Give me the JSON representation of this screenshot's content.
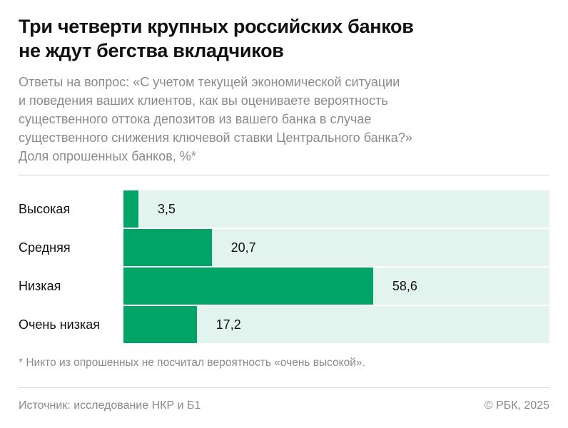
{
  "title": [
    "Три четверти крупных российских банков",
    "не ждут бегства вкладчиков"
  ],
  "subtitle": [
    "Ответы на вопрос: «С учетом текущей экономической ситуации",
    "и поведения ваших клиентов, как вы оцениваете вероятность",
    "существенного оттока депозитов из вашего банка в случае",
    "существенного снижения ключевой ставки Центрального банка?»",
    "Доля опрошенных банков, %*"
  ],
  "chart_data": {
    "type": "bar",
    "orientation": "horizontal",
    "categories": [
      "Высокая",
      "Средняя",
      "Низкая",
      "Очень низкая"
    ],
    "values": [
      3.5,
      20.7,
      58.6,
      17.2
    ],
    "value_labels": [
      "3,5",
      "20,7",
      "58,6",
      "17,2"
    ],
    "xlim": [
      0,
      100
    ],
    "grid": false,
    "colors": {
      "bar": "#00a466",
      "track": "#e3f4ee"
    }
  },
  "footnote": "* Никто из опрошенных не посчитал вероятность «очень высокой».",
  "source": "Источник: исследование НКР и Б1",
  "copyright": "© РБК, 2025"
}
